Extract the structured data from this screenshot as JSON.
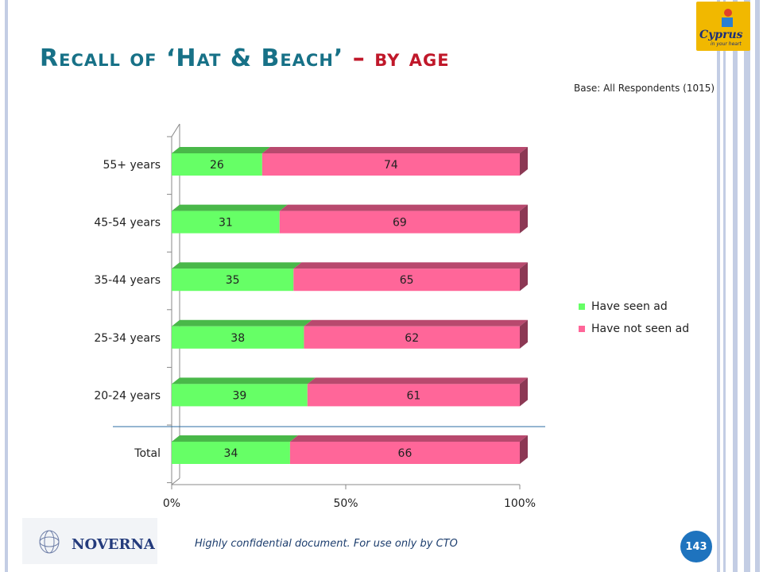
{
  "slide": {
    "title_main": "Recall of ‘Hat & Beach’",
    "title_sep": "–",
    "title_sub": "by age",
    "base_note": "Base: All Respondents (1015)",
    "footer_note": "Highly confidential document. For use only by CTO",
    "page_number": "143",
    "logo_cyprus_text": "Cyprus",
    "logo_cyprus_tagline": "in your heart",
    "logo_noverna_text": "NOVERNA"
  },
  "chart_data": {
    "type": "bar",
    "orientation": "horizontal",
    "stacked": true,
    "percent_stacked": true,
    "categories": [
      "55+ years",
      "45-54 years",
      "35-44 years",
      "25-34 years",
      "20-24 years",
      "Total"
    ],
    "series": [
      {
        "name": "Have seen ad",
        "color": "#66ff66",
        "values": [
          26,
          31,
          35,
          38,
          39,
          34
        ]
      },
      {
        "name": "Have not seen ad",
        "color": "#ff6699",
        "values": [
          74,
          69,
          65,
          62,
          61,
          66
        ]
      }
    ],
    "xlim": [
      0,
      100
    ],
    "xticks": [
      "0%",
      "50%",
      "100%"
    ],
    "legend_position": "right",
    "grid": false
  }
}
